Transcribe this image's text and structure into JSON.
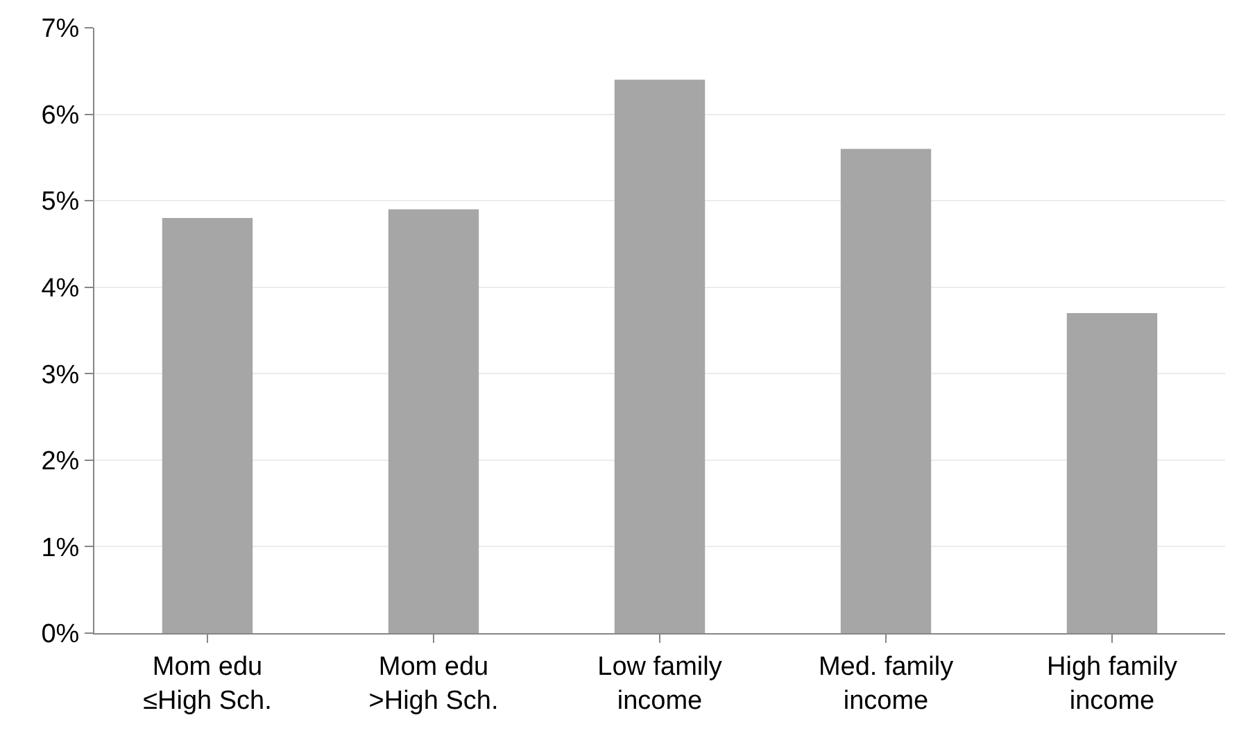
{
  "chart_data": {
    "type": "bar",
    "categories": [
      "Mom edu\n≤High Sch.",
      "Mom edu\n>High Sch.",
      "Low family\nincome",
      "Med. family\nincome",
      "High family\nincome"
    ],
    "values": [
      4.8,
      4.9,
      6.4,
      5.6,
      3.7
    ],
    "color": "#a6a6a6",
    "ylim": [
      0,
      7
    ],
    "yticks": [
      {
        "value": 0,
        "label": "0%"
      },
      {
        "value": 1,
        "label": "1%"
      },
      {
        "value": 2,
        "label": "2%"
      },
      {
        "value": 3,
        "label": "3%"
      },
      {
        "value": 4,
        "label": "4%"
      },
      {
        "value": 5,
        "label": "5%"
      },
      {
        "value": 6,
        "label": "6%"
      },
      {
        "value": 7,
        "label": "7%"
      }
    ],
    "grid": "y"
  }
}
